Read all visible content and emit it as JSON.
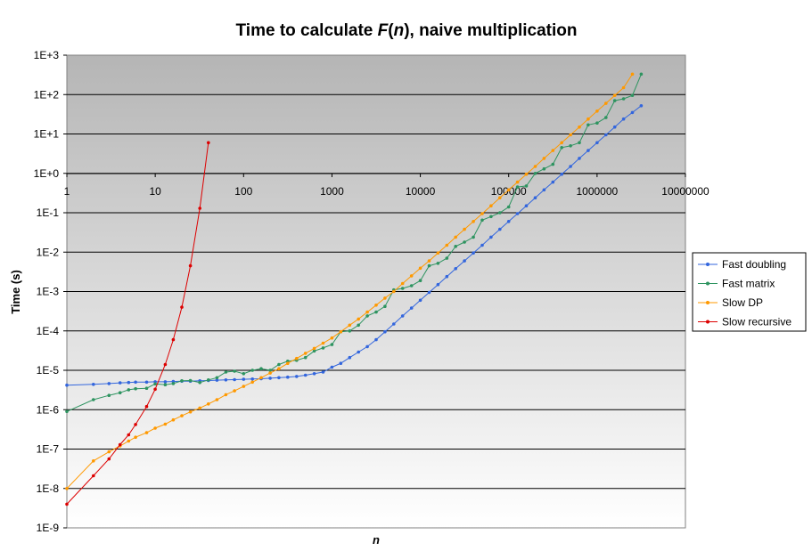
{
  "chart_data": {
    "type": "line",
    "title_pre": "Time to calculate ",
    "title_fn": "F",
    "title_open": "(",
    "title_arg": "n",
    "title_close": ")",
    "title_post": ", naive multiplication",
    "xlabel": "n",
    "ylabel": "Time (s)",
    "x_scale": "log",
    "y_scale": "log",
    "xlim": [
      1,
      10000000
    ],
    "ylim": [
      1e-09,
      1000
    ],
    "grid": "horizontal major gridlines",
    "legend_position": "right",
    "background": "vertical gradient, dark grey at top to white at bottom",
    "y_ticks": [
      {
        "v": 1000,
        "label": "1E+3"
      },
      {
        "v": 100,
        "label": "1E+2"
      },
      {
        "v": 10,
        "label": "1E+1"
      },
      {
        "v": 1,
        "label": "1E+0"
      },
      {
        "v": 0.1,
        "label": "1E-1"
      },
      {
        "v": 0.01,
        "label": "1E-2"
      },
      {
        "v": 0.001,
        "label": "1E-3"
      },
      {
        "v": 0.0001,
        "label": "1E-4"
      },
      {
        "v": 1e-05,
        "label": "1E-5"
      },
      {
        "v": 1e-06,
        "label": "1E-6"
      },
      {
        "v": 1e-07,
        "label": "1E-7"
      },
      {
        "v": 1e-08,
        "label": "1E-8"
      },
      {
        "v": 1e-09,
        "label": "1E-9"
      }
    ],
    "x_ticks": [
      {
        "v": 1,
        "label": "1"
      },
      {
        "v": 10,
        "label": "10"
      },
      {
        "v": 100,
        "label": "100"
      },
      {
        "v": 1000,
        "label": "1000"
      },
      {
        "v": 10000,
        "label": "10000"
      },
      {
        "v": 100000,
        "label": "100000"
      },
      {
        "v": 1000000,
        "label": "1000000"
      },
      {
        "v": 10000000,
        "label": "10000000"
      }
    ],
    "series": [
      {
        "name": "Fast doubling",
        "color": "#3366dd",
        "x": [
          1,
          2,
          3,
          4,
          5,
          6,
          8,
          10,
          13,
          16,
          20,
          25,
          32,
          40,
          50,
          63,
          79,
          100,
          126,
          158,
          200,
          251,
          316,
          398,
          501,
          631,
          794,
          1000,
          1259,
          1585,
          1995,
          2512,
          3162,
          3981,
          5012,
          6310,
          7943,
          10000,
          12589,
          15849,
          19953,
          25119,
          31623,
          39811,
          50119,
          63096,
          79433,
          100000,
          125893,
          158489,
          199526,
          251189,
          316228,
          398107,
          501187,
          630957,
          794328,
          1000000,
          1258925,
          1584893,
          1995262,
          2511886,
          3162278
        ],
        "y": [
          4.2e-06,
          4.4e-06,
          4.6e-06,
          4.8e-06,
          4.9e-06,
          5e-06,
          5e-06,
          5.1e-06,
          5.1e-06,
          5.2e-06,
          5.3e-06,
          5.3e-06,
          5.4e-06,
          5.5e-06,
          5.6e-06,
          5.7e-06,
          5.8e-06,
          5.9e-06,
          6e-06,
          6.1e-06,
          6.3e-06,
          6.5e-06,
          6.7e-06,
          7e-06,
          7.5e-06,
          8.2e-06,
          9e-06,
          1.2e-05,
          1.5e-05,
          2.1e-05,
          2.9e-05,
          4e-05,
          6e-05,
          9.5e-05,
          0.00015,
          0.00024,
          0.00038,
          0.0006,
          0.00095,
          0.0015,
          0.0024,
          0.0038,
          0.006,
          0.0095,
          0.015,
          0.024,
          0.038,
          0.06,
          0.095,
          0.15,
          0.24,
          0.38,
          0.6,
          0.95,
          1.5,
          2.4,
          3.8,
          6.0,
          9.5,
          15,
          24,
          35,
          52
        ]
      },
      {
        "name": "Fast matrix",
        "color": "#2e9460",
        "x": [
          1,
          2,
          3,
          4,
          5,
          6,
          8,
          10,
          13,
          16,
          20,
          25,
          32,
          40,
          50,
          63,
          79,
          100,
          126,
          158,
          200,
          251,
          316,
          398,
          501,
          631,
          794,
          1000,
          1259,
          1585,
          1995,
          2512,
          3162,
          3981,
          5012,
          6310,
          7943,
          10000,
          12589,
          15849,
          19953,
          25119,
          31623,
          39811,
          50119,
          63096,
          79433,
          100000,
          125893,
          158489,
          199526,
          251189,
          316228,
          398107,
          501187,
          630957,
          794328,
          1000000,
          1258925,
          1584893,
          1995262,
          2511886,
          3162278
        ],
        "y": [
          9e-07,
          1.8e-06,
          2.3e-06,
          2.7e-06,
          3.2e-06,
          3.4e-06,
          3.5e-06,
          4.5e-06,
          4.3e-06,
          4.6e-06,
          5.4e-06,
          5.5e-06,
          4.9e-06,
          5.7e-06,
          6.5e-06,
          9e-06,
          9.5e-06,
          8.2e-06,
          1e-05,
          1.1e-05,
          1e-05,
          1.4e-05,
          1.7e-05,
          1.8e-05,
          2.1e-05,
          3.1e-05,
          3.7e-05,
          4.5e-05,
          9.5e-05,
          0.0001,
          0.00014,
          0.00024,
          0.0003,
          0.00042,
          0.0011,
          0.0012,
          0.0014,
          0.0019,
          0.0045,
          0.0052,
          0.007,
          0.014,
          0.018,
          0.024,
          0.065,
          0.08,
          0.1,
          0.14,
          0.45,
          0.48,
          1.0,
          1.3,
          1.7,
          4.5,
          5.0,
          6.0,
          17,
          19,
          26,
          70,
          78,
          95,
          330
        ]
      },
      {
        "name": "Slow DP",
        "color": "#ff9900",
        "x": [
          1,
          2,
          3,
          4,
          5,
          6,
          8,
          10,
          13,
          16,
          20,
          25,
          32,
          40,
          50,
          63,
          79,
          100,
          126,
          158,
          200,
          251,
          316,
          398,
          501,
          631,
          794,
          1000,
          1259,
          1585,
          1995,
          2512,
          3162,
          3981,
          5012,
          6310,
          7943,
          10000,
          12589,
          15849,
          19953,
          25119,
          31623,
          39811,
          50119,
          63096,
          79433,
          100000,
          125893,
          158489,
          199526,
          251189,
          316228,
          398107,
          501187,
          630957,
          794328,
          1000000,
          1258925,
          1584893,
          1995262,
          2511886
        ],
        "y": [
          1e-08,
          5e-08,
          8.5e-08,
          1.2e-07,
          1.6e-07,
          2e-07,
          2.6e-07,
          3.4e-07,
          4.3e-07,
          5.5e-07,
          7e-07,
          8.8e-07,
          1.1e-06,
          1.4e-06,
          1.8e-06,
          2.4e-06,
          3e-06,
          3.9e-06,
          5e-06,
          6.5e-06,
          8.5e-06,
          1.1e-05,
          1.5e-05,
          2e-05,
          2.7e-05,
          3.6e-05,
          4.9e-05,
          6.6e-05,
          9.5e-05,
          0.00014,
          0.0002,
          0.0003,
          0.00045,
          0.00068,
          0.001,
          0.0016,
          0.0025,
          0.0039,
          0.006,
          0.0095,
          0.015,
          0.024,
          0.038,
          0.06,
          0.095,
          0.15,
          0.24,
          0.38,
          0.6,
          0.95,
          1.5,
          2.4,
          3.8,
          6.0,
          9.5,
          15,
          24,
          38,
          60,
          95,
          150,
          330
        ]
      },
      {
        "name": "Slow recursive",
        "color": "#dd0000",
        "x": [
          1,
          2,
          3,
          4,
          5,
          6,
          8,
          10,
          13,
          16,
          20,
          25,
          32,
          40
        ],
        "y": [
          4e-09,
          2.1e-08,
          5.6e-08,
          1.3e-07,
          2.3e-07,
          4.2e-07,
          1.2e-06,
          3.3e-06,
          1.4e-05,
          6e-05,
          0.0004,
          0.0045,
          0.13,
          6.0
        ]
      }
    ]
  }
}
